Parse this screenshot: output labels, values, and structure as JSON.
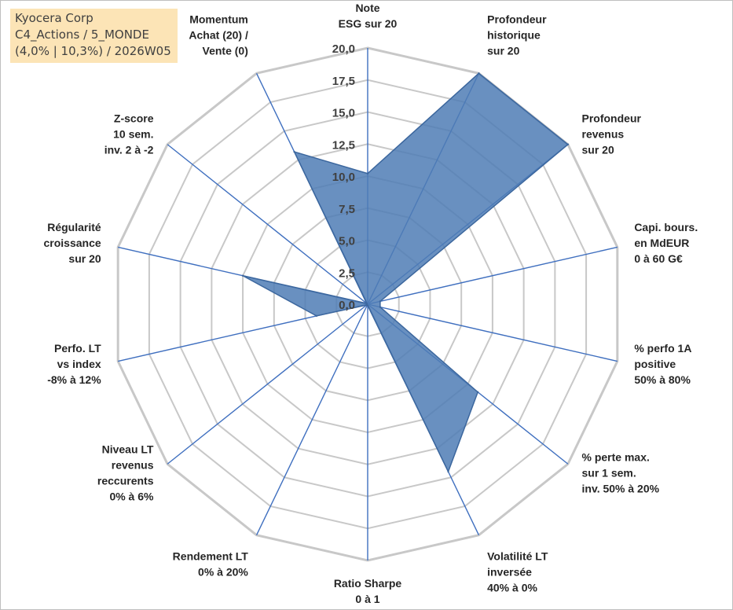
{
  "info_box": {
    "line1": "Kyocera Corp",
    "line2": "C4_Actions / 5_MONDE",
    "line3": "(4,0% | 10,3%) / 2026W05"
  },
  "colors": {
    "fill": "#4f7cb5",
    "outline": "#3c679e",
    "grid": "#c8c8c8",
    "spoke": "#3f6fbf",
    "info_bg": "#fce4b6"
  },
  "chart_data": {
    "type": "radar",
    "title": "",
    "rmin": 0,
    "rmax": 20,
    "tick_step": 2.5,
    "tick_labels": [
      "0,0",
      "2,5",
      "5,0",
      "7,5",
      "10,0",
      "12,5",
      "15,0",
      "17,5",
      "20,0"
    ],
    "grid": true,
    "categories": [
      [
        "Note",
        "ESG sur 20"
      ],
      [
        "Profondeur",
        "historique",
        "sur 20"
      ],
      [
        "Profondeur",
        "revenus",
        "sur 20"
      ],
      [
        "Capi. bours.",
        "en MdEUR",
        "0 à 60 G€"
      ],
      [
        "% perfo 1A",
        "positive",
        "50% à 80%"
      ],
      [
        "% perte max.",
        "sur 1 sem.",
        "inv. 50% à 20%"
      ],
      [
        "Volatilité LT",
        "inversée",
        "40% à 0%"
      ],
      [
        "Ratio Sharpe",
        "0 à 1"
      ],
      [
        "Rendement LT",
        "0% à 20%"
      ],
      [
        "Niveau LT",
        "revenus",
        "reccurents",
        "0% à 6%"
      ],
      [
        "Perfo. LT",
        "vs index",
        "-8% à 12%"
      ],
      [
        "Régularité",
        "croissance",
        "sur 20"
      ],
      [
        "Z-score",
        "10 sem.",
        "inv. 2 à -2"
      ],
      [
        "Momentum",
        "Achat (20) /",
        "Vente (0)"
      ]
    ],
    "series": [
      {
        "values": [
          10.2,
          20.0,
          20.0,
          1.0,
          1.0,
          11.0,
          14.5,
          0.1,
          0.1,
          0.1,
          4.1,
          10.0,
          0.1,
          13.2
        ]
      }
    ]
  }
}
